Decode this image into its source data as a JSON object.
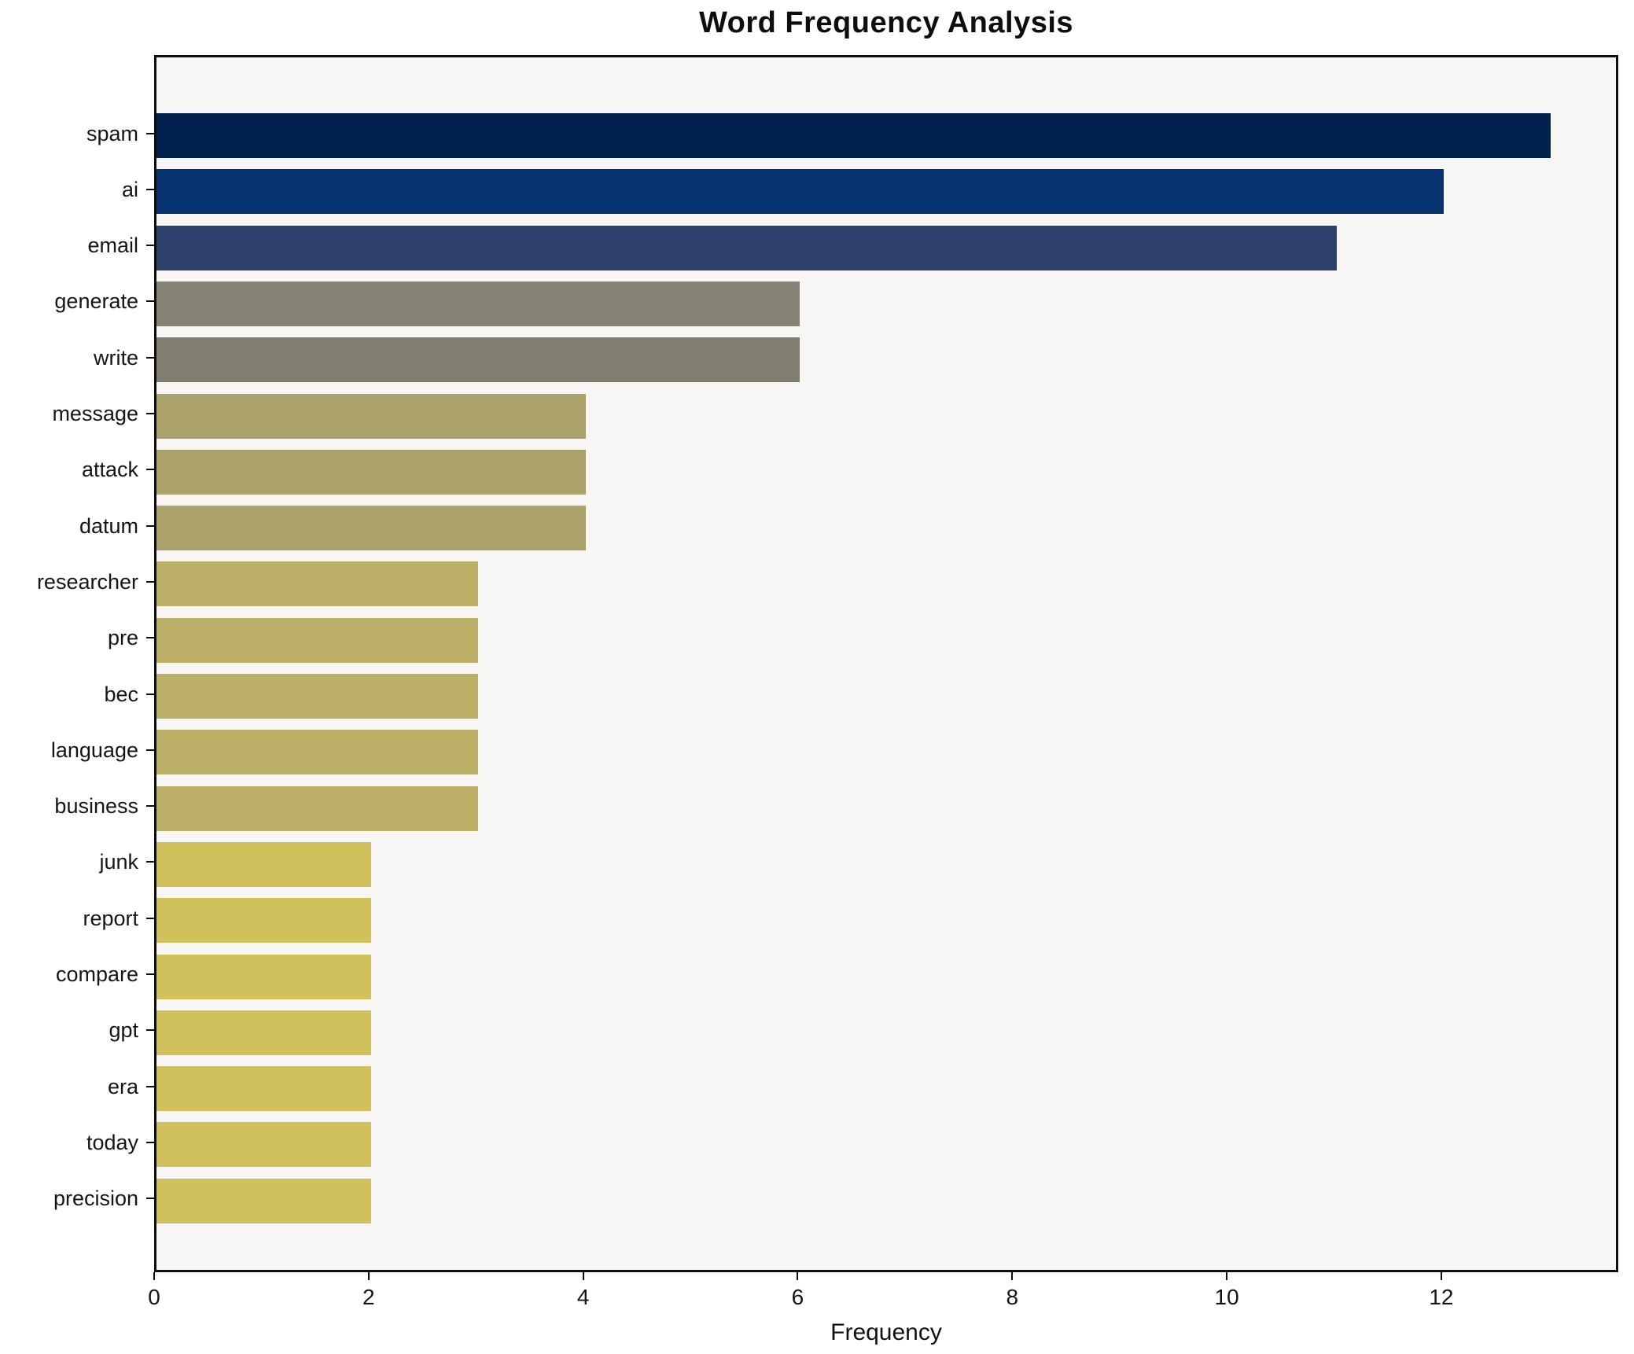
{
  "chart_data": {
    "type": "bar",
    "orientation": "horizontal",
    "title": "Word Frequency Analysis",
    "xlabel": "Frequency",
    "ylabel": "",
    "categories": [
      "spam",
      "ai",
      "email",
      "generate",
      "write",
      "message",
      "attack",
      "datum",
      "researcher",
      "pre",
      "bec",
      "language",
      "business",
      "junk",
      "report",
      "compare",
      "gpt",
      "era",
      "today",
      "precision"
    ],
    "values": [
      13,
      12,
      11,
      6,
      6,
      4,
      4,
      4,
      3,
      3,
      3,
      3,
      3,
      2,
      2,
      2,
      2,
      2,
      2,
      2
    ],
    "bar_colors": [
      "#02214c",
      "#073371",
      "#2d3f6c",
      "#868376",
      "#817e70",
      "#aba26b",
      "#aba26b",
      "#aba26b",
      "#bcb069",
      "#bcb069",
      "#bcb069",
      "#bcb069",
      "#bcb069",
      "#d1c15d",
      "#d1c15d",
      "#d1c15d",
      "#d1c15d",
      "#d1c15d",
      "#d1c15d",
      "#d1c15d"
    ],
    "xlim": [
      0,
      13.65
    ],
    "x_ticks": [
      0,
      2,
      4,
      6,
      8,
      10,
      12
    ],
    "grid": false,
    "legend": "none",
    "plot_background": "#f7f6f4",
    "frame_color": "#0d0d0d"
  }
}
